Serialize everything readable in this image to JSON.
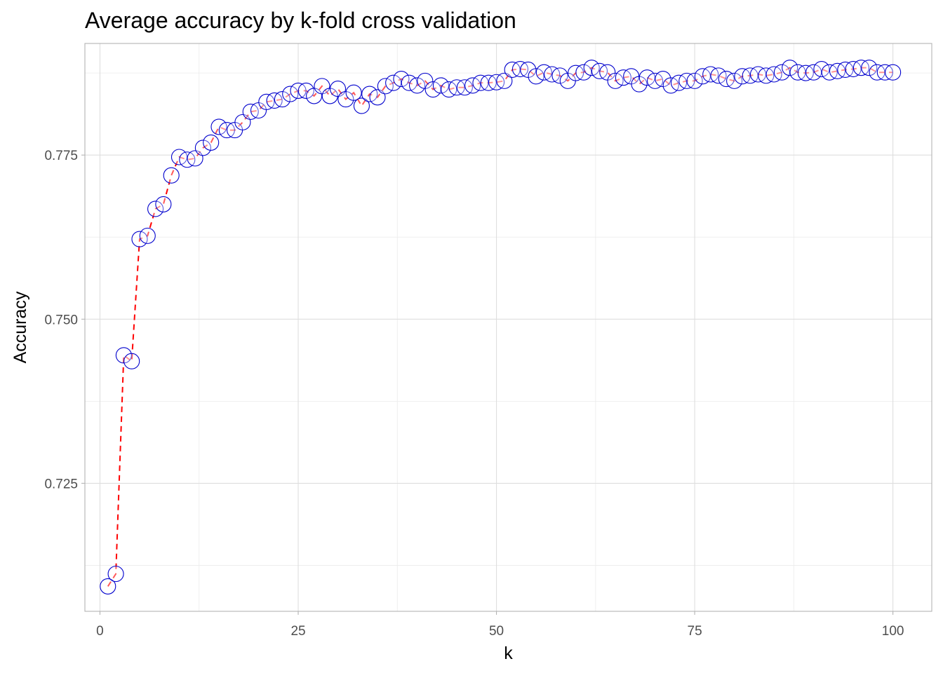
{
  "chart_data": {
    "type": "line",
    "title": "Average accuracy by k-fold cross validation",
    "xlabel": "k",
    "ylabel": "Accuracy",
    "xlim": [
      -1.9,
      104.9
    ],
    "ylim": [
      0.7055,
      0.792
    ],
    "x_ticks": [
      0,
      25,
      50,
      75,
      100
    ],
    "x_tick_labels": [
      "0",
      "25",
      "50",
      "75",
      "100"
    ],
    "y_ticks": [
      0.725,
      0.75,
      0.775
    ],
    "y_tick_labels": [
      "0.725",
      "0.750",
      "0.775"
    ],
    "grid": true,
    "legend": "none",
    "line_color": "#ff0000",
    "line_style": "dashed",
    "point_stroke_color": "#0000cd",
    "point_fill_color": "#ffffff",
    "series": [
      {
        "x": [
          1,
          2,
          3,
          4,
          5,
          6,
          7,
          8,
          9,
          10,
          11,
          12,
          13,
          14,
          15,
          16,
          17,
          18,
          19,
          20,
          21,
          22,
          23,
          24,
          25,
          26,
          27,
          28,
          29,
          30,
          31,
          32,
          33,
          34,
          35,
          36,
          37,
          38,
          39,
          40,
          41,
          42,
          43,
          44,
          45,
          46,
          47,
          48,
          49,
          50,
          51,
          52,
          53,
          54,
          55,
          56,
          57,
          58,
          59,
          60,
          61,
          62,
          63,
          64,
          65,
          66,
          67,
          68,
          69,
          70,
          71,
          72,
          73,
          74,
          75,
          76,
          77,
          78,
          79,
          80,
          81,
          82,
          83,
          84,
          85,
          86,
          87,
          88,
          89,
          90,
          91,
          92,
          93,
          94,
          95,
          96,
          97,
          98,
          99,
          100
        ],
        "y": [
          0.7093,
          0.7112,
          0.7445,
          0.7436,
          0.7622,
          0.7627,
          0.7668,
          0.7675,
          0.7719,
          0.7747,
          0.7743,
          0.7745,
          0.7761,
          0.7769,
          0.7793,
          0.7788,
          0.7788,
          0.78,
          0.7816,
          0.7818,
          0.7831,
          0.7833,
          0.7835,
          0.7843,
          0.7848,
          0.7848,
          0.784,
          0.7855,
          0.784,
          0.7851,
          0.7835,
          0.7845,
          0.7825,
          0.7843,
          0.7838,
          0.7855,
          0.786,
          0.7866,
          0.786,
          0.7856,
          0.7863,
          0.785,
          0.7856,
          0.785,
          0.7853,
          0.7853,
          0.7856,
          0.786,
          0.786,
          0.7861,
          0.7863,
          0.788,
          0.7881,
          0.788,
          0.787,
          0.7876,
          0.7873,
          0.7871,
          0.7863,
          0.7875,
          0.7876,
          0.7883,
          0.7878,
          0.7876,
          0.7863,
          0.7868,
          0.787,
          0.7858,
          0.7868,
          0.7863,
          0.7866,
          0.7856,
          0.786,
          0.7863,
          0.7863,
          0.787,
          0.7873,
          0.7871,
          0.7866,
          0.7863,
          0.787,
          0.7871,
          0.7873,
          0.7871,
          0.7873,
          0.7876,
          0.7883,
          0.7876,
          0.7875,
          0.7876,
          0.7881,
          0.7876,
          0.7878,
          0.788,
          0.7881,
          0.7883,
          0.7883,
          0.7876,
          0.7876,
          0.7876
        ]
      }
    ]
  }
}
